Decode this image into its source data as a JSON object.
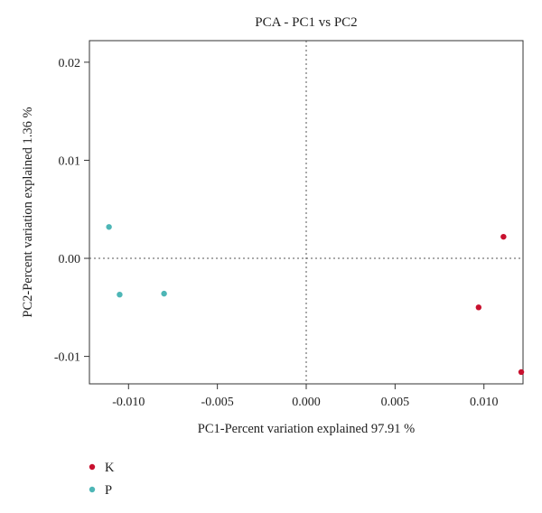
{
  "chart_data": {
    "type": "scatter",
    "title": "PCA - PC1 vs PC2",
    "xlabel": "PC1-Percent variation explained 97.91 %",
    "ylabel": "PC2-Percent variation explained 1.36 %",
    "xlim": [
      -0.0122,
      0.0122
    ],
    "ylim": [
      -0.0128,
      0.0222
    ],
    "x_ticks": [
      {
        "value": -0.01,
        "label": "-0.010"
      },
      {
        "value": -0.005,
        "label": "-0.005"
      },
      {
        "value": 0.0,
        "label": "0.000"
      },
      {
        "value": 0.005,
        "label": "0.005"
      },
      {
        "value": 0.01,
        "label": "0.010"
      }
    ],
    "y_ticks": [
      {
        "value": -0.01,
        "label": "-0.01"
      },
      {
        "value": 0.0,
        "label": "0.00"
      },
      {
        "value": 0.01,
        "label": "0.01"
      },
      {
        "value": 0.02,
        "label": "0.02"
      }
    ],
    "reference_lines": {
      "x": 0.0,
      "y": 0.0,
      "style": "dotted"
    },
    "grid": false,
    "legend_position": "bottom-left",
    "series": [
      {
        "name": "K",
        "color": "#c8102e",
        "points": [
          {
            "x": 0.0111,
            "y": 0.0022
          },
          {
            "x": 0.0097,
            "y": -0.005
          },
          {
            "x": 0.0121,
            "y": -0.0116
          }
        ]
      },
      {
        "name": "P",
        "color": "#4db6b6",
        "points": [
          {
            "x": -0.0111,
            "y": 0.0032
          },
          {
            "x": -0.0105,
            "y": -0.0037
          },
          {
            "x": -0.008,
            "y": -0.0036
          }
        ]
      }
    ]
  }
}
